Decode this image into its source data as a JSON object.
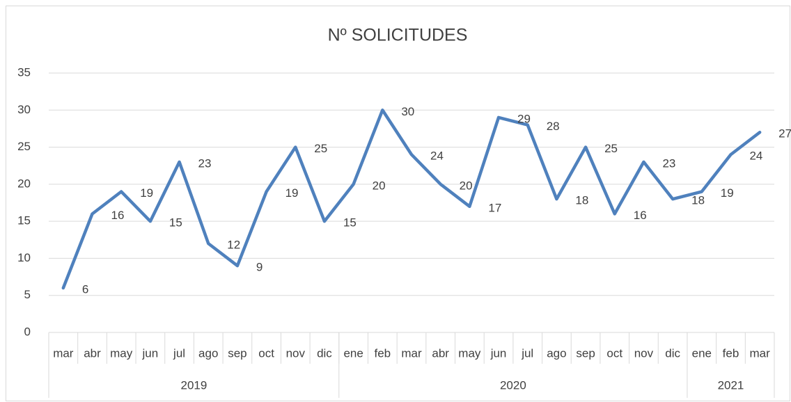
{
  "chart_data": {
    "type": "line",
    "title": "Nº SOLICITUDES",
    "category_groups": [
      {
        "label": "2019",
        "categories": [
          "mar",
          "abr",
          "may",
          "jun",
          "jul",
          "ago",
          "sep",
          "oct",
          "nov",
          "dic"
        ]
      },
      {
        "label": "2020",
        "categories": [
          "ene",
          "feb",
          "mar",
          "abr",
          "may",
          "jun",
          "jul",
          "ago",
          "sep",
          "oct",
          "nov",
          "dic"
        ]
      },
      {
        "label": "2021",
        "categories": [
          "ene",
          "feb",
          "mar"
        ]
      }
    ],
    "series": [
      {
        "name": "Nº SOLICITUDES",
        "color": "#4f81bd",
        "values": [
          6,
          16,
          19,
          15,
          23,
          12,
          9,
          19,
          25,
          15,
          20,
          30,
          24,
          20,
          17,
          29,
          28,
          18,
          25,
          16,
          23,
          18,
          19,
          24,
          27
        ]
      }
    ],
    "ylim": [
      0,
      35
    ],
    "yticks": [
      0,
      5,
      10,
      15,
      20,
      25,
      30,
      35
    ],
    "grid": true,
    "data_labels": true
  }
}
